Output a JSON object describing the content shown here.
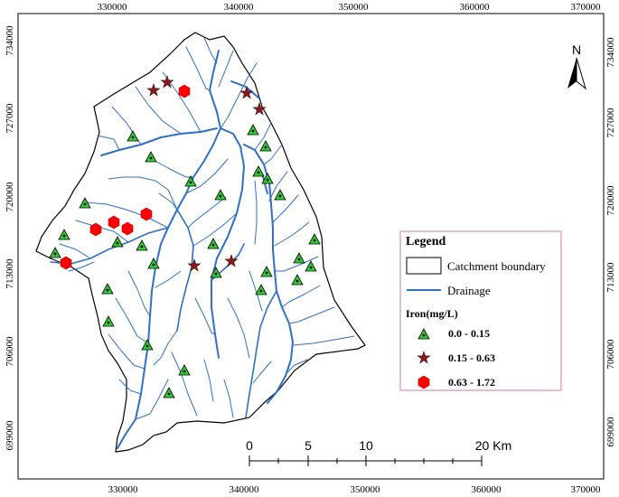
{
  "map": {
    "x_ticks": [
      "330000",
      "340000",
      "350000",
      "360000",
      "370000"
    ],
    "y_ticks": [
      "734000",
      "727000",
      "720000",
      "713000",
      "706000",
      "699000"
    ]
  },
  "north_arrow": {
    "label": "N",
    "icon": "north-arrow-icon"
  },
  "scale_bar": {
    "labels": [
      "0",
      "5",
      "10",
      "20 Km"
    ]
  },
  "legend": {
    "title": "Legend",
    "boundary_label": "Catchment boundary",
    "drainage_label": "Drainage",
    "subtitle": "Iron(mg/L)",
    "classes": [
      {
        "label": "0.0 - 0.15",
        "symbol": "triangle",
        "color": "#33cc33"
      },
      {
        "label": "0.15 - 0.63",
        "symbol": "star",
        "color": "#8b1a1a"
      },
      {
        "label": "0.63 - 1.72",
        "symbol": "hexagon",
        "color": "#ff0000"
      }
    ]
  },
  "colors": {
    "drainage": "#2f6fc7",
    "boundary": "#000000",
    "legend_border": "#c77ab0"
  }
}
